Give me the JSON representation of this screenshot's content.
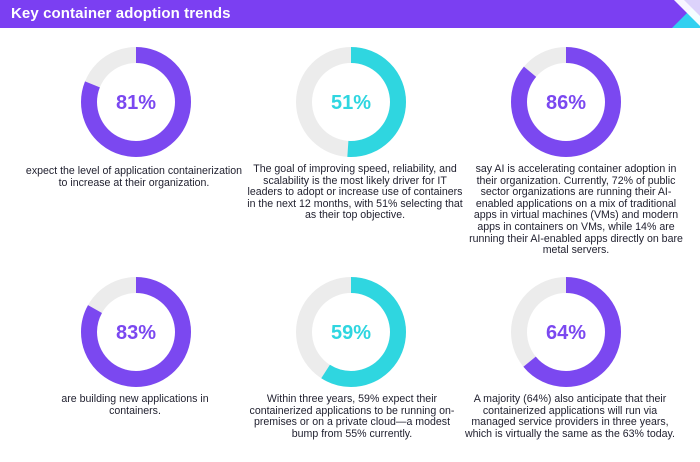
{
  "header": {
    "title": "Key container adoption trends"
  },
  "colors": {
    "header_bg": "#7b3ff2",
    "purple": "#7b48f0",
    "cyan": "#2fd6e0",
    "track": "#ececec",
    "corner_blue": "#31d0f0"
  },
  "chart_data": {
    "type": "donut",
    "items": [
      {
        "label": "81%",
        "value": 81,
        "color": "#7b48f0",
        "caption": "expect the level of application containerization to increase at their organization."
      },
      {
        "label": "51%",
        "value": 51,
        "color": "#2fd6e0",
        "caption": "The goal of improving speed, reliability, and scalability is the most likely driver for IT leaders to adopt or increase use of containers in the next 12 months, with 51% selecting that as their top objective."
      },
      {
        "label": "86%",
        "value": 86,
        "color": "#7b48f0",
        "caption": "say AI is accelerating container adoption in their organization. Currently, 72% of public sector organizations are running their AI-enabled applications on a mix of traditional apps in virtual machines (VMs) and modern apps in containers on VMs, while 14% are running their AI-enabled apps directly on bare metal servers."
      },
      {
        "label": "83%",
        "value": 83,
        "color": "#7b48f0",
        "caption": "are building new applications in containers."
      },
      {
        "label": "59%",
        "value": 59,
        "color": "#2fd6e0",
        "caption": "Within three years, 59% expect their containerized applications to be running on-premises or on a private cloud—a modest bump from 55% currently."
      },
      {
        "label": "64%",
        "value": 64,
        "color": "#7b48f0",
        "caption": "A majority (64%) also anticipate that their containerized applications will run via managed service providers in three years, which is virtually the same as the 63% today."
      }
    ]
  }
}
